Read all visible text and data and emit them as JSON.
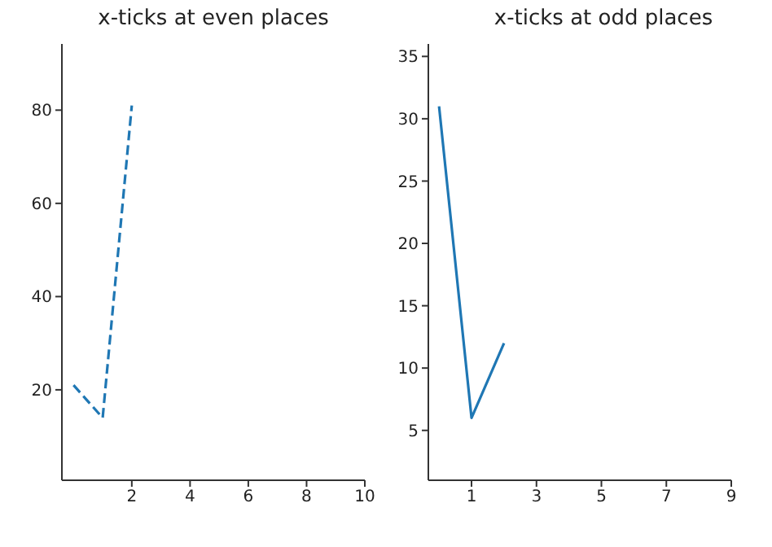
{
  "chart_data": [
    {
      "type": "line",
      "title": "x-ticks at even places",
      "x": [
        0,
        1,
        2
      ],
      "series": [
        {
          "color": "#1f77b4",
          "values": [
            21,
            14,
            81
          ]
        }
      ],
      "line_style": "dashed",
      "xlim": [
        -0.4,
        10
      ],
      "xticks": [
        2,
        4,
        6,
        8,
        10
      ],
      "ylim": [
        0.6,
        94.2
      ],
      "yticks": [
        20,
        40,
        60,
        80
      ],
      "grid": false
    },
    {
      "type": "line",
      "title": "x-ticks at odd places",
      "x": [
        0,
        1,
        2
      ],
      "series": [
        {
          "color": "#1f77b4",
          "values": [
            31,
            6,
            12
          ]
        }
      ],
      "line_style": "solid",
      "xlim": [
        -0.33,
        9
      ],
      "xticks": [
        1,
        3,
        5,
        7,
        9
      ],
      "ylim": [
        1,
        36
      ],
      "yticks": [
        5,
        10,
        15,
        20,
        25,
        30,
        35
      ],
      "grid": false
    }
  ]
}
